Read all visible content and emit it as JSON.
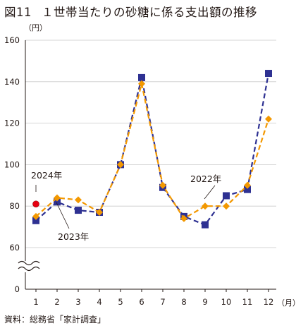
{
  "figure": {
    "number": "図11",
    "title": "１世帯当たりの砂糖に係る支出額の推移"
  },
  "source": "資料：総務省「家計調査」",
  "chart_data": {
    "type": "line",
    "y_unit": "（円）",
    "x_unit": "（月）",
    "x": [
      1,
      2,
      3,
      4,
      5,
      6,
      7,
      8,
      9,
      10,
      11,
      12
    ],
    "x_tick_labels": [
      "1",
      "2",
      "3",
      "4",
      "5",
      "6",
      "7",
      "8",
      "9",
      "10",
      "11",
      "12"
    ],
    "y_ticks": [
      0,
      60,
      80,
      100,
      120,
      140,
      160
    ],
    "y_tick_labels": [
      "0",
      "60",
      "80",
      "100",
      "120",
      "140",
      "160"
    ],
    "ylim": [
      60,
      160
    ],
    "axis_break": true,
    "grid": "horizontal",
    "series": [
      {
        "name": "2022年",
        "color": "#2e3192",
        "marker": "square",
        "line": "dashed",
        "values": [
          73,
          82,
          78,
          77,
          100,
          142,
          89,
          75,
          71,
          85,
          88,
          144
        ]
      },
      {
        "name": "2023年",
        "color": "#f39800",
        "marker": "diamond",
        "line": "dashed",
        "values": [
          75,
          84,
          83,
          77,
          100,
          139,
          90,
          74,
          80,
          80,
          90,
          122
        ]
      },
      {
        "name": "2024年",
        "color": "#e60012",
        "marker": "circle",
        "line": "none",
        "values": [
          81,
          null,
          null,
          null,
          null,
          null,
          null,
          null,
          null,
          null,
          null,
          null
        ]
      }
    ]
  }
}
